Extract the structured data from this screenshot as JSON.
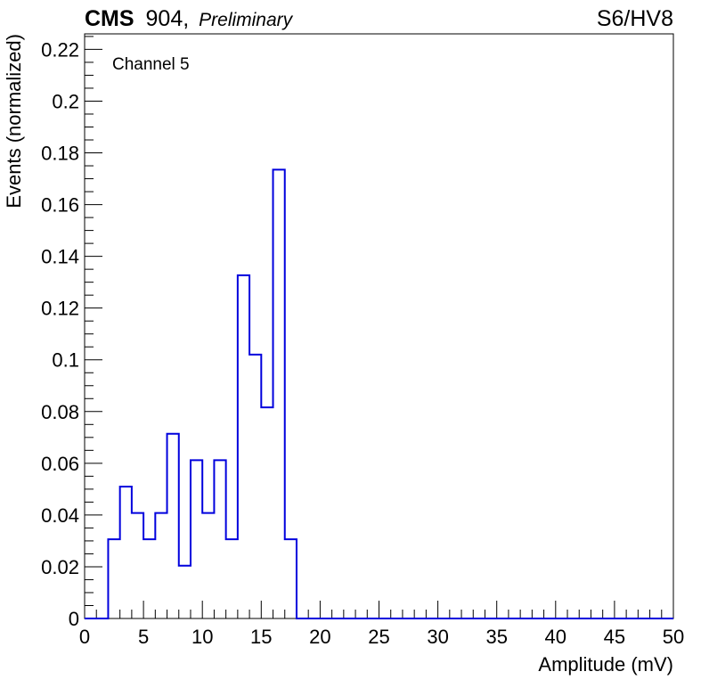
{
  "header": {
    "experiment": "CMS",
    "location": "904,",
    "status": "Preliminary",
    "run_label": "S6/HV8"
  },
  "annotation": "Channel 5",
  "colors": {
    "histogram": "#0000dd",
    "frame": "#000000",
    "background": "#ffffff"
  },
  "chart_data": {
    "type": "bar",
    "style": "step-histogram",
    "xlabel": "Amplitude (mV)",
    "ylabel": "Events (normalized)",
    "xlim": [
      0,
      50
    ],
    "ylim": [
      0,
      0.226
    ],
    "grid": false,
    "legend": "none",
    "x_ticks": [
      0,
      5,
      10,
      15,
      20,
      25,
      30,
      35,
      40,
      45,
      50
    ],
    "x_tick_labels": [
      "0",
      "5",
      "10",
      "15",
      "20",
      "25",
      "30",
      "35",
      "40",
      "45",
      "50"
    ],
    "y_ticks": [
      0,
      0.02,
      0.04,
      0.06,
      0.08,
      0.1,
      0.12,
      0.14,
      0.16,
      0.18,
      0.2,
      0.22
    ],
    "y_tick_labels": [
      "0",
      "0.02",
      "0.04",
      "0.06",
      "0.08",
      "0.1",
      "0.12",
      "0.14",
      "0.16",
      "0.18",
      "0.2",
      "0.22"
    ],
    "bin_edges": [
      0,
      1,
      2,
      3,
      4,
      5,
      6,
      7,
      8,
      9,
      10,
      11,
      12,
      13,
      14,
      15,
      16,
      17,
      18,
      19,
      20,
      21,
      22,
      23,
      24,
      25,
      26,
      27,
      28,
      29,
      30,
      31,
      32,
      33,
      34,
      35,
      36,
      37,
      38,
      39,
      40,
      41,
      42,
      43,
      44,
      45,
      46,
      47,
      48,
      49,
      50
    ],
    "values": [
      0,
      0,
      0.0306,
      0.051,
      0.0408,
      0.0306,
      0.0408,
      0.0714,
      0.0204,
      0.0612,
      0.0408,
      0.0612,
      0.0306,
      0.1327,
      0.102,
      0.0816,
      0.1735,
      0.0306,
      0,
      0,
      0,
      0,
      0,
      0,
      0,
      0,
      0,
      0,
      0,
      0,
      0,
      0,
      0,
      0,
      0,
      0,
      0,
      0,
      0,
      0,
      0,
      0,
      0,
      0,
      0,
      0,
      0,
      0,
      0,
      0
    ]
  }
}
